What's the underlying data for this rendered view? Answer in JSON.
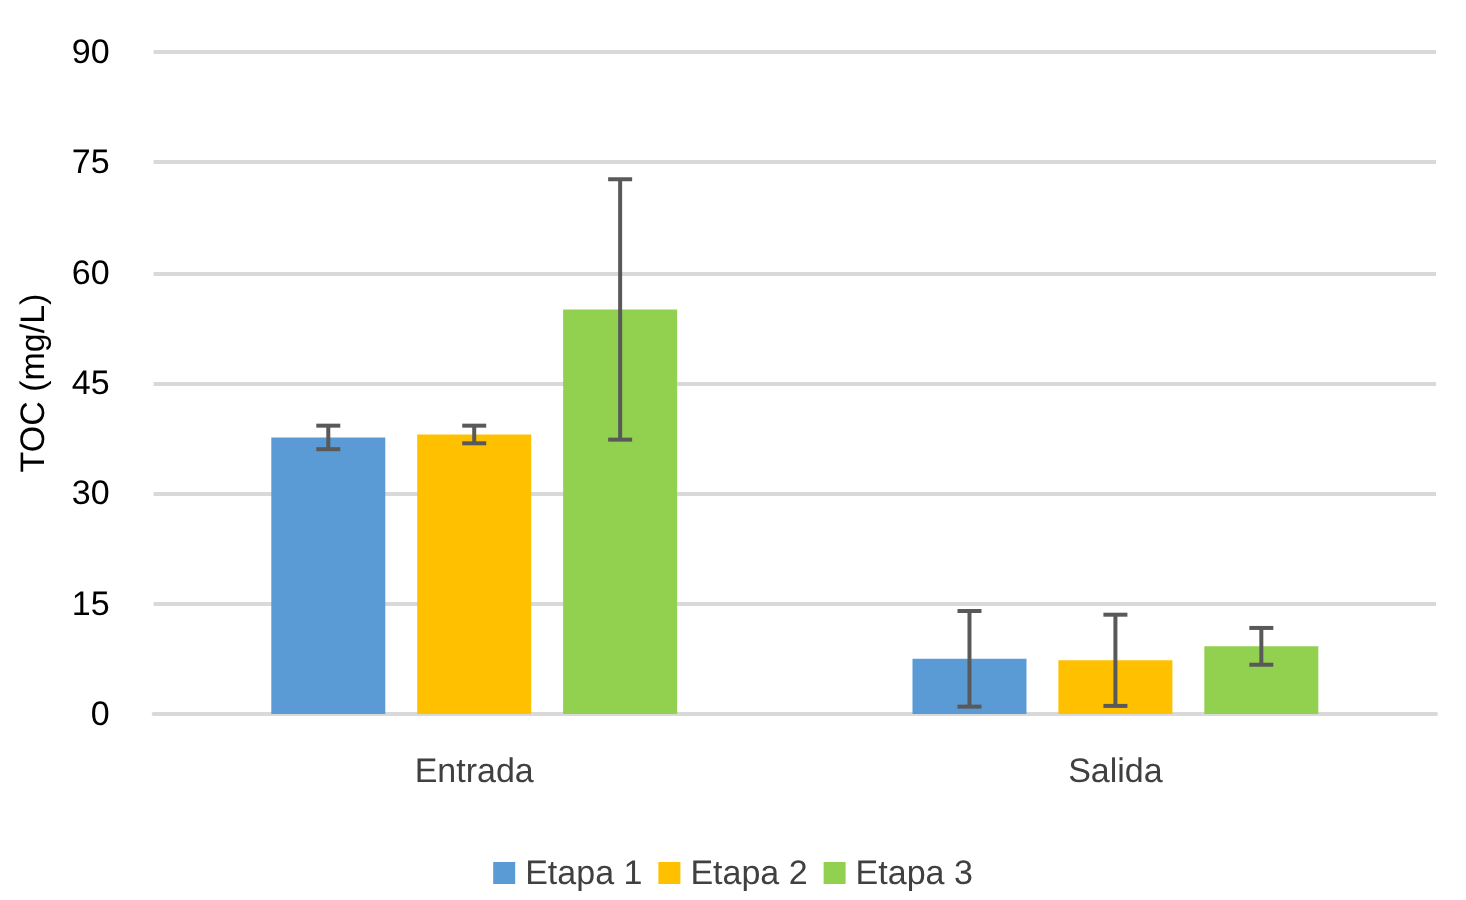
{
  "chart_data": {
    "type": "bar",
    "ylabel": "TOC (mg/L)",
    "categories": [
      "Entrada",
      "Salida"
    ],
    "series": [
      {
        "name": "Etapa 1",
        "color": "#5b9bd5",
        "values": [
          37.6,
          7.5
        ],
        "errors": [
          1.6,
          6.5
        ]
      },
      {
        "name": "Etapa 2",
        "color": "#ffc000",
        "values": [
          38.0,
          7.3
        ],
        "errors": [
          1.2,
          6.2
        ]
      },
      {
        "name": "Etapa 3",
        "color": "#92d050",
        "values": [
          55.0,
          9.2
        ],
        "errors": [
          17.7,
          2.5
        ]
      }
    ],
    "ylim": [
      0,
      90
    ],
    "yticks": [
      0,
      15,
      30,
      45,
      60,
      75,
      90
    ],
    "grid": "y",
    "legend": "bottom"
  }
}
